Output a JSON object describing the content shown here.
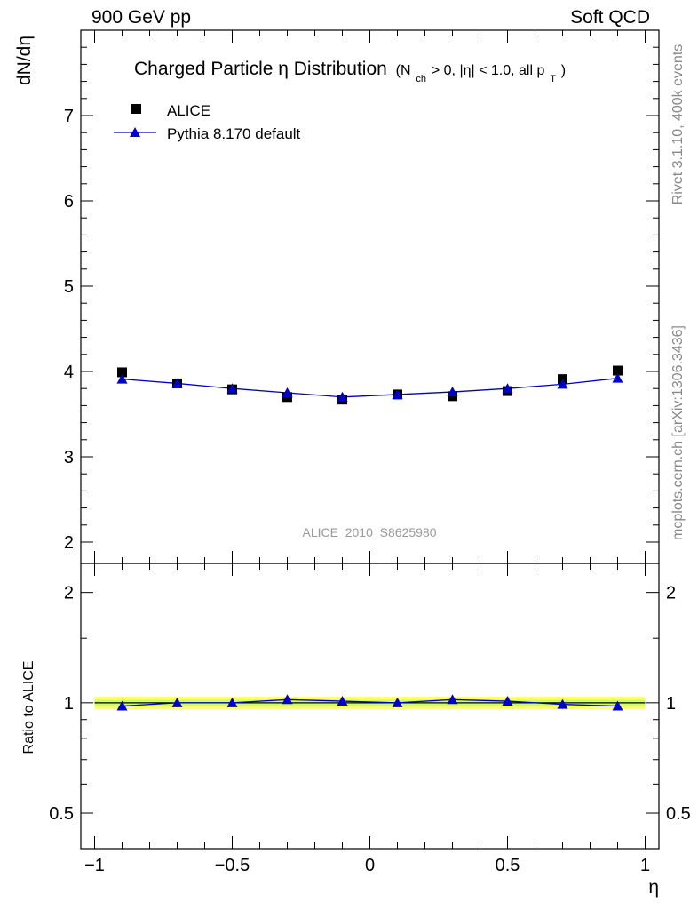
{
  "header": {
    "left": "900 GeV pp",
    "right": "Soft QCD"
  },
  "side": {
    "rivet": "Rivet 3.1.10,  400k events",
    "url": "mcplots.cern.ch [arXiv:1306.3436]"
  },
  "chart_data": [
    {
      "type": "scatter",
      "panel": "main",
      "title": "Charged Particle η Distribution",
      "subtitle": "(N_ch > 0, |η| < 1.0, all p_T)",
      "title_parts": {
        "main": "Charged Particle η Distribution",
        "open": "(N",
        "sub1": "ch",
        "mid": " > 0, |η| < 1.0, all p",
        "sub2": "T",
        "close": ")"
      },
      "ylabel": "dN/dη",
      "xlim": [
        -1.05,
        1.05
      ],
      "ylim": [
        1.75,
        8.0
      ],
      "yticks": [
        2,
        3,
        4,
        5,
        6,
        7
      ],
      "watermark": "ALICE_2010_S8625980",
      "legend_position": "top-left",
      "x": [
        -0.9,
        -0.7,
        -0.5,
        -0.3,
        -0.1,
        0.1,
        0.3,
        0.5,
        0.7,
        0.9
      ],
      "series": [
        {
          "name": "ALICE",
          "color": "#000000",
          "marker": "square",
          "values": [
            3.99,
            3.86,
            3.79,
            3.7,
            3.67,
            3.73,
            3.71,
            3.77,
            3.91,
            4.01
          ]
        },
        {
          "name": "Pythia 8.170 default",
          "color": "#0000cc",
          "marker": "triangle",
          "line": true,
          "values": [
            3.91,
            3.86,
            3.8,
            3.75,
            3.7,
            3.73,
            3.76,
            3.8,
            3.85,
            3.92
          ]
        }
      ]
    },
    {
      "type": "line",
      "panel": "ratio",
      "ylabel": "Ratio to ALICE",
      "xlabel": "η",
      "scale": "log",
      "ylim": [
        0.4,
        2.4
      ],
      "yticks": [
        0.5,
        1,
        2
      ],
      "ytick_labels": [
        "0.5",
        "1",
        "2"
      ],
      "xticks": [
        -1,
        -0.5,
        0,
        0.5,
        1
      ],
      "xtick_labels": [
        "−1",
        "−0.5",
        "0",
        "0.5",
        "1"
      ],
      "band_color": "#ffff66",
      "band_inner_color": "#ccff66",
      "x": [
        -0.9,
        -0.7,
        -0.5,
        -0.3,
        -0.1,
        0.1,
        0.3,
        0.5,
        0.7,
        0.9
      ],
      "series": [
        {
          "name": "Pythia 8.170 default",
          "color": "#0000cc",
          "marker": "triangle",
          "values": [
            0.98,
            1.0,
            1.0,
            1.02,
            1.01,
            1.0,
            1.02,
            1.01,
            0.99,
            0.98
          ]
        }
      ]
    }
  ]
}
